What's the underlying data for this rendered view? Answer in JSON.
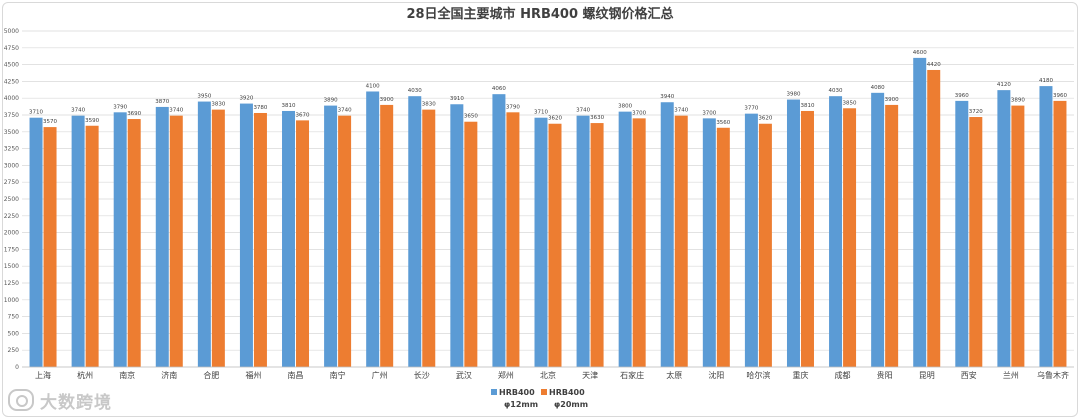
{
  "chart_data": {
    "type": "bar",
    "title": "28日全国主要城市 HRB400 螺纹钢价格汇总",
    "xlabel": "",
    "ylabel": "",
    "ylim": [
      0,
      5000
    ],
    "yticks": [
      0,
      250,
      500,
      750,
      1000,
      1250,
      1500,
      1750,
      2000,
      2250,
      2500,
      2750,
      3000,
      3250,
      3500,
      3750,
      4000,
      4250,
      4500,
      4750,
      5000
    ],
    "grid": true,
    "legend_position": "bottom",
    "categories": [
      "上海",
      "杭州",
      "南京",
      "济南",
      "合肥",
      "福州",
      "南昌",
      "南宁",
      "广州",
      "长沙",
      "武汉",
      "郑州",
      "北京",
      "天津",
      "石家庄",
      "太原",
      "沈阳",
      "哈尔滨",
      "重庆",
      "成都",
      "贵阳",
      "昆明",
      "西安",
      "兰州",
      "乌鲁木齐"
    ],
    "series": [
      {
        "name": "HRB400 φ12mm",
        "name_line1": "HRB400",
        "name_line2": "φ12mm",
        "color": "#5b9bd5",
        "values": [
          3710,
          3740,
          3790,
          3870,
          3950,
          3920,
          3810,
          3890,
          4100,
          4030,
          3910,
          4060,
          3710,
          3740,
          3800,
          3940,
          3700,
          3770,
          3980,
          4030,
          4080,
          4600,
          3960,
          4120,
          4180
        ]
      },
      {
        "name": "HRB400 φ20mm",
        "name_line1": "HRB400",
        "name_line2": "φ20mm",
        "color": "#ed7d31",
        "values": [
          3570,
          3590,
          3690,
          3740,
          3830,
          3780,
          3670,
          3740,
          3900,
          3830,
          3650,
          3790,
          3620,
          3630,
          3700,
          3740,
          3560,
          3620,
          3810,
          3850,
          3900,
          4420,
          3720,
          3890,
          3960
        ]
      }
    ]
  },
  "watermark": {
    "text": "大数跨境"
  }
}
